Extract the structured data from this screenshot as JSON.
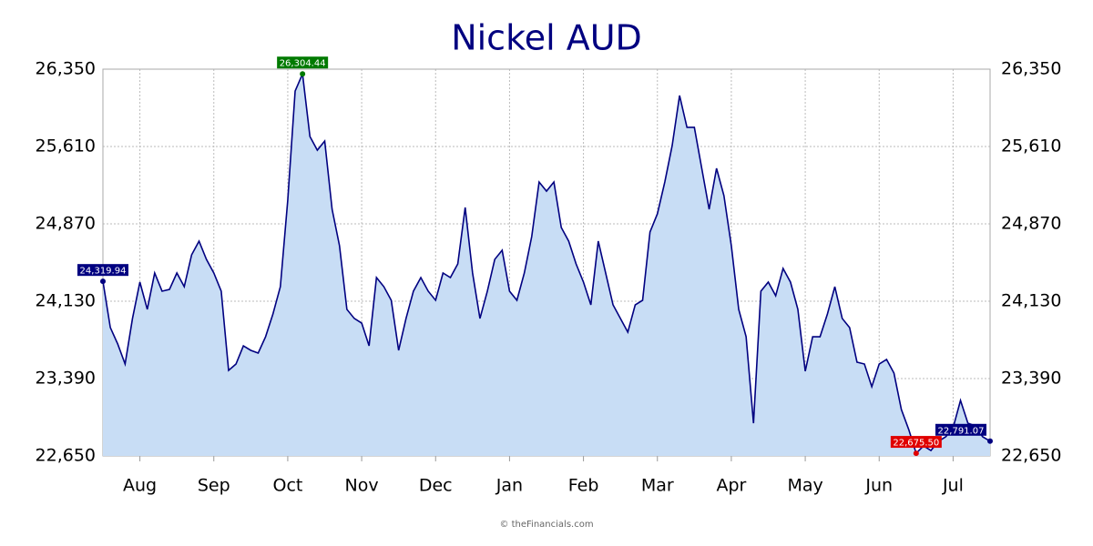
{
  "chart_data": {
    "type": "area",
    "title": "Nickel AUD",
    "source": "© theFinancials.com",
    "categories": [
      null,
      null,
      null,
      null,
      null,
      "Aug",
      null,
      null,
      null,
      null,
      null,
      null,
      null,
      null,
      null,
      "Sep",
      null,
      null,
      null,
      null,
      null,
      null,
      null,
      null,
      null,
      "Oct",
      null,
      null,
      null,
      null,
      null,
      null,
      null,
      null,
      null,
      "Nov",
      null,
      null,
      null,
      null,
      null,
      null,
      null,
      null,
      null,
      "Dec",
      null,
      null,
      null,
      null,
      null,
      null,
      null,
      null,
      null,
      "Jan",
      null,
      null,
      null,
      null,
      null,
      null,
      null,
      null,
      null,
      "Feb",
      null,
      null,
      null,
      null,
      null,
      null,
      null,
      null,
      null,
      "Mar",
      null,
      null,
      null,
      null,
      null,
      null,
      null,
      null,
      null,
      "Apr",
      null,
      null,
      null,
      null,
      null,
      null,
      null,
      null,
      null,
      "May",
      null,
      null,
      null,
      null,
      null,
      null,
      null,
      null,
      null,
      "Jun",
      null,
      null,
      null,
      null,
      null,
      null,
      null,
      null,
      null,
      "Jul",
      null,
      null,
      null,
      null,
      null
    ],
    "values": [
      24319.94,
      23878,
      23721,
      23529,
      23965,
      24313,
      24052,
      24400,
      24226,
      24243,
      24400,
      24269,
      24574,
      24705,
      24530,
      24400,
      24226,
      23468,
      23529,
      23703,
      23660,
      23634,
      23790,
      24008,
      24269,
      25096,
      26141,
      26304.44,
      25706,
      25575,
      25662,
      25009,
      24661,
      24052,
      23965,
      23921,
      23703,
      24356,
      24269,
      24139,
      23660,
      23965,
      24226,
      24356,
      24226,
      24139,
      24400,
      24356,
      24487,
      25027,
      24400,
      23965,
      24226,
      24530,
      24618,
      24226,
      24139,
      24400,
      24748,
      25270,
      25183,
      25270,
      24835,
      24705,
      24487,
      24313,
      24095,
      24705,
      24400,
      24095,
      23965,
      23834,
      24095,
      24139,
      24792,
      24966,
      25270,
      25619,
      26098,
      25793,
      25793,
      25401,
      25009,
      25401,
      25140,
      24661,
      24052,
      23790,
      22963,
      24226,
      24313,
      24182,
      24443,
      24313,
      24052,
      23460,
      23790,
      23790,
      24008,
      24269,
      23965,
      23878,
      23547,
      23529,
      23312,
      23529,
      23573,
      23442,
      23094,
      22902,
      22675.5,
      22746,
      22702,
      22789,
      22833,
      22920,
      23181,
      22963,
      22937,
      22833,
      22791.07
    ],
    "value_labels": [
      "24,319.94",
      null,
      null,
      null,
      null,
      null,
      null,
      null,
      null,
      null,
      null,
      null,
      null,
      null,
      null,
      null,
      null,
      null,
      null,
      null,
      null,
      null,
      null,
      null,
      null,
      null,
      null,
      "26,304.44",
      null,
      null,
      null,
      null,
      null,
      null,
      null,
      null,
      null,
      null,
      null,
      null,
      null,
      null,
      null,
      null,
      null,
      null,
      null,
      null,
      null,
      null,
      null,
      null,
      null,
      null,
      null,
      null,
      null,
      null,
      null,
      null,
      null,
      null,
      null,
      null,
      null,
      null,
      null,
      null,
      null,
      null,
      null,
      null,
      null,
      null,
      null,
      null,
      null,
      null,
      null,
      null,
      null,
      null,
      null,
      null,
      null,
      null,
      null,
      null,
      null,
      null,
      null,
      null,
      null,
      null,
      null,
      null,
      null,
      null,
      null,
      null,
      null,
      null,
      null,
      null,
      null,
      null,
      null,
      null,
      null,
      null,
      "22,675.50",
      null,
      null,
      null,
      null,
      null,
      null,
      null,
      null,
      null,
      "22,791.07"
    ],
    "color": "#000080",
    "fill_color": "#c8ddf5",
    "high_color": "#007a00",
    "low_color": "#e00000",
    "ylim": [
      22650,
      26350
    ],
    "yticks": [
      {
        "value": 22650,
        "label": "22,650"
      },
      {
        "value": 23390,
        "label": "23,390"
      },
      {
        "value": 24130,
        "label": "24,130"
      },
      {
        "value": 24870,
        "label": "24,870"
      },
      {
        "value": 25610,
        "label": "25,610"
      },
      {
        "value": 26350,
        "label": "26,350"
      }
    ],
    "grid": true
  }
}
